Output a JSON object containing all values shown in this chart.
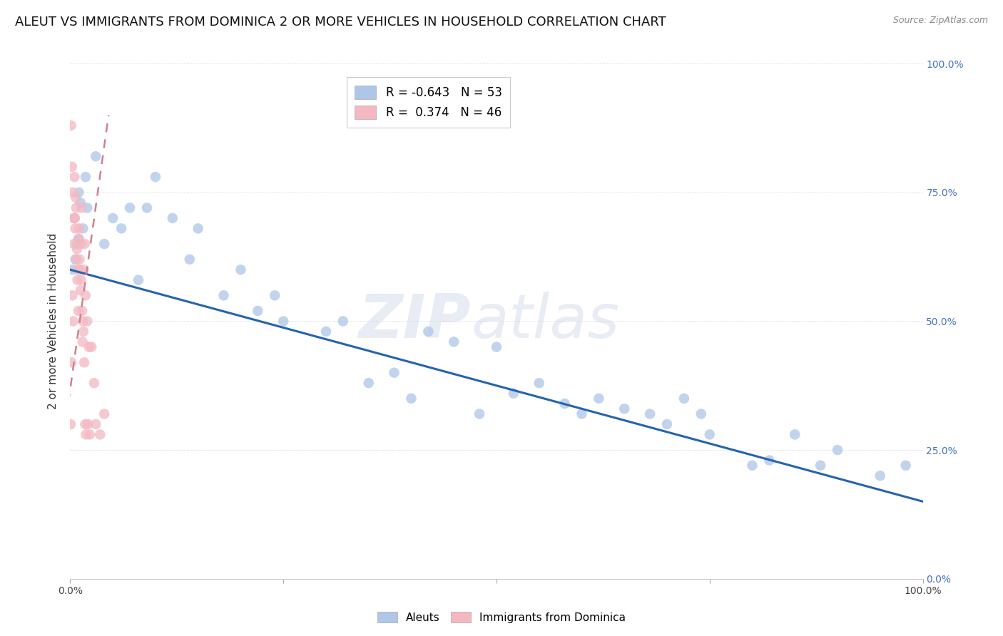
{
  "title": "ALEUT VS IMMIGRANTS FROM DOMINICA 2 OR MORE VEHICLES IN HOUSEHOLD CORRELATION CHART",
  "source": "Source: ZipAtlas.com",
  "ylabel": "2 or more Vehicles in Household",
  "legend_blue_R": "-0.643",
  "legend_blue_N": "53",
  "legend_pink_R": "0.374",
  "legend_pink_N": "46",
  "aleuts_x": [
    1.5,
    2.0,
    1.0,
    0.5,
    0.8,
    1.2,
    0.3,
    1.8,
    0.6,
    1.0,
    3.0,
    5.0,
    4.0,
    7.0,
    6.0,
    8.0,
    10.0,
    9.0,
    12.0,
    15.0,
    14.0,
    18.0,
    20.0,
    22.0,
    24.0,
    25.0,
    30.0,
    32.0,
    35.0,
    38.0,
    40.0,
    42.0,
    45.0,
    48.0,
    50.0,
    52.0,
    55.0,
    58.0,
    60.0,
    62.0,
    65.0,
    68.0,
    70.0,
    72.0,
    74.0,
    75.0,
    80.0,
    82.0,
    85.0,
    88.0,
    90.0,
    95.0,
    98.0
  ],
  "aleuts_y": [
    68.0,
    72.0,
    75.0,
    70.0,
    65.0,
    73.0,
    60.0,
    78.0,
    62.0,
    66.0,
    82.0,
    70.0,
    65.0,
    72.0,
    68.0,
    58.0,
    78.0,
    72.0,
    70.0,
    68.0,
    62.0,
    55.0,
    60.0,
    52.0,
    55.0,
    50.0,
    48.0,
    50.0,
    38.0,
    40.0,
    35.0,
    48.0,
    46.0,
    32.0,
    45.0,
    36.0,
    38.0,
    34.0,
    32.0,
    35.0,
    33.0,
    32.0,
    30.0,
    35.0,
    32.0,
    28.0,
    22.0,
    23.0,
    28.0,
    22.0,
    25.0,
    20.0,
    22.0
  ],
  "dominica_x": [
    0.1,
    0.2,
    0.3,
    0.4,
    0.5,
    0.6,
    0.7,
    0.8,
    0.9,
    1.0,
    1.1,
    1.2,
    1.3,
    1.4,
    1.5,
    1.6,
    1.7,
    1.8,
    2.0,
    2.2,
    2.5,
    2.8,
    3.0,
    3.5,
    4.0,
    0.15,
    0.25,
    0.35,
    0.45,
    0.55,
    0.65,
    0.75,
    0.85,
    0.95,
    1.05,
    1.15,
    1.25,
    1.35,
    1.45,
    1.55,
    1.65,
    1.75,
    1.85,
    2.1,
    2.3,
    0.05
  ],
  "dominica_y": [
    88.0,
    80.0,
    75.0,
    70.0,
    78.0,
    68.0,
    72.0,
    64.0,
    60.0,
    66.0,
    62.0,
    56.0,
    58.0,
    52.0,
    50.0,
    60.0,
    65.0,
    55.0,
    50.0,
    45.0,
    45.0,
    38.0,
    30.0,
    28.0,
    32.0,
    42.0,
    55.0,
    50.0,
    65.0,
    70.0,
    74.0,
    62.0,
    58.0,
    52.0,
    68.0,
    60.0,
    65.0,
    72.0,
    46.0,
    48.0,
    42.0,
    30.0,
    28.0,
    30.0,
    28.0,
    30.0
  ],
  "blue_line_x0": 0.0,
  "blue_line_y0": 60.0,
  "blue_line_x1": 100.0,
  "blue_line_y1": 15.0,
  "pink_line_x0": -1.0,
  "pink_line_y0": 25.0,
  "pink_line_x1": 4.5,
  "pink_line_y1": 90.0,
  "xlim": [
    0,
    100
  ],
  "ylim": [
    0,
    100
  ],
  "bg_color": "#ffffff",
  "dot_color_blue": "#aec6e8",
  "dot_color_pink": "#f4b8c1",
  "line_color_blue": "#2563b0",
  "line_color_pink": "#d08090",
  "grid_color": "#dde4ef",
  "watermark_zip": "ZIP",
  "watermark_atlas": "atlas",
  "title_fontsize": 13,
  "label_fontsize": 11,
  "tick_fontsize": 10,
  "right_tick_color": "#4472c4"
}
